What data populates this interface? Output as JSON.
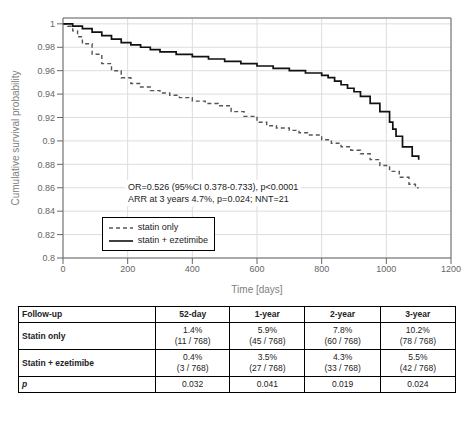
{
  "chart_data": {
    "type": "step",
    "xlabel": "Time [days]",
    "ylabel": "Cumulative survival probability",
    "xlim": [
      0,
      1200
    ],
    "ylim": [
      0.8,
      1.005
    ],
    "xticks": [
      0,
      200,
      400,
      600,
      800,
      1000,
      1200
    ],
    "yticks": [
      0.8,
      0.82,
      0.84,
      0.86,
      0.88,
      0.9,
      0.92,
      0.94,
      0.96,
      0.98,
      1
    ],
    "grid": true,
    "legend": "lower left",
    "annotation": "OR=0.526 (95%CI 0.378-0.733), p<0.0001\nARR at 3 years 4.7%, p=0.024; NNT=21",
    "series": [
      {
        "name": "statin only",
        "color": "#555555",
        "line_style": "dashed",
        "x": [
          0,
          15,
          30,
          45,
          60,
          90,
          120,
          150,
          180,
          210,
          240,
          270,
          300,
          330,
          360,
          400,
          440,
          480,
          520,
          560,
          600,
          630,
          660,
          700,
          730,
          760,
          800,
          830,
          860,
          890,
          920,
          950,
          980,
          1010,
          1040,
          1070,
          1090,
          1100
        ],
        "values": [
          1.0,
          0.998,
          0.994,
          0.989,
          0.983,
          0.974,
          0.966,
          0.96,
          0.954,
          0.949,
          0.946,
          0.943,
          0.941,
          0.939,
          0.937,
          0.934,
          0.932,
          0.93,
          0.925,
          0.921,
          0.916,
          0.913,
          0.911,
          0.909,
          0.907,
          0.905,
          0.901,
          0.898,
          0.895,
          0.892,
          0.889,
          0.884,
          0.879,
          0.874,
          0.869,
          0.863,
          0.86,
          0.86
        ]
      },
      {
        "name": "statin + ezetimibe",
        "color": "#111111",
        "line_style": "solid",
        "x": [
          0,
          30,
          60,
          90,
          120,
          150,
          180,
          210,
          240,
          270,
          300,
          350,
          400,
          450,
          500,
          550,
          600,
          650,
          700,
          750,
          800,
          820,
          840,
          860,
          880,
          900,
          920,
          950,
          980,
          1010,
          1020,
          1030,
          1050,
          1080,
          1100
        ],
        "values": [
          1.0,
          0.998,
          0.996,
          0.993,
          0.99,
          0.987,
          0.984,
          0.982,
          0.98,
          0.978,
          0.976,
          0.974,
          0.972,
          0.97,
          0.968,
          0.966,
          0.964,
          0.962,
          0.96,
          0.958,
          0.956,
          0.954,
          0.951,
          0.948,
          0.945,
          0.942,
          0.938,
          0.932,
          0.925,
          0.916,
          0.91,
          0.904,
          0.895,
          0.887,
          0.884
        ]
      }
    ],
    "table": {
      "headers": [
        "Follow-up",
        "52-day",
        "1-year",
        "2-year",
        "3-year"
      ],
      "rows": [
        {
          "label": "Statin only",
          "values": [
            "1.4%\n(11 / 768)",
            "5.9%\n(45 / 768)",
            "7.8%\n(60 / 768)",
            "10.2%\n(78 / 768)"
          ]
        },
        {
          "label": "Statin + ezetimibe",
          "values": [
            "0.4%\n(3 / 768)",
            "3.5%\n(27 / 768)",
            "4.3%\n(33 / 768)",
            "5.5%\n(42 / 768)"
          ]
        },
        {
          "label": "p",
          "values": [
            "0.032",
            "0.041",
            "0.019",
            "0.024"
          ]
        }
      ]
    }
  }
}
